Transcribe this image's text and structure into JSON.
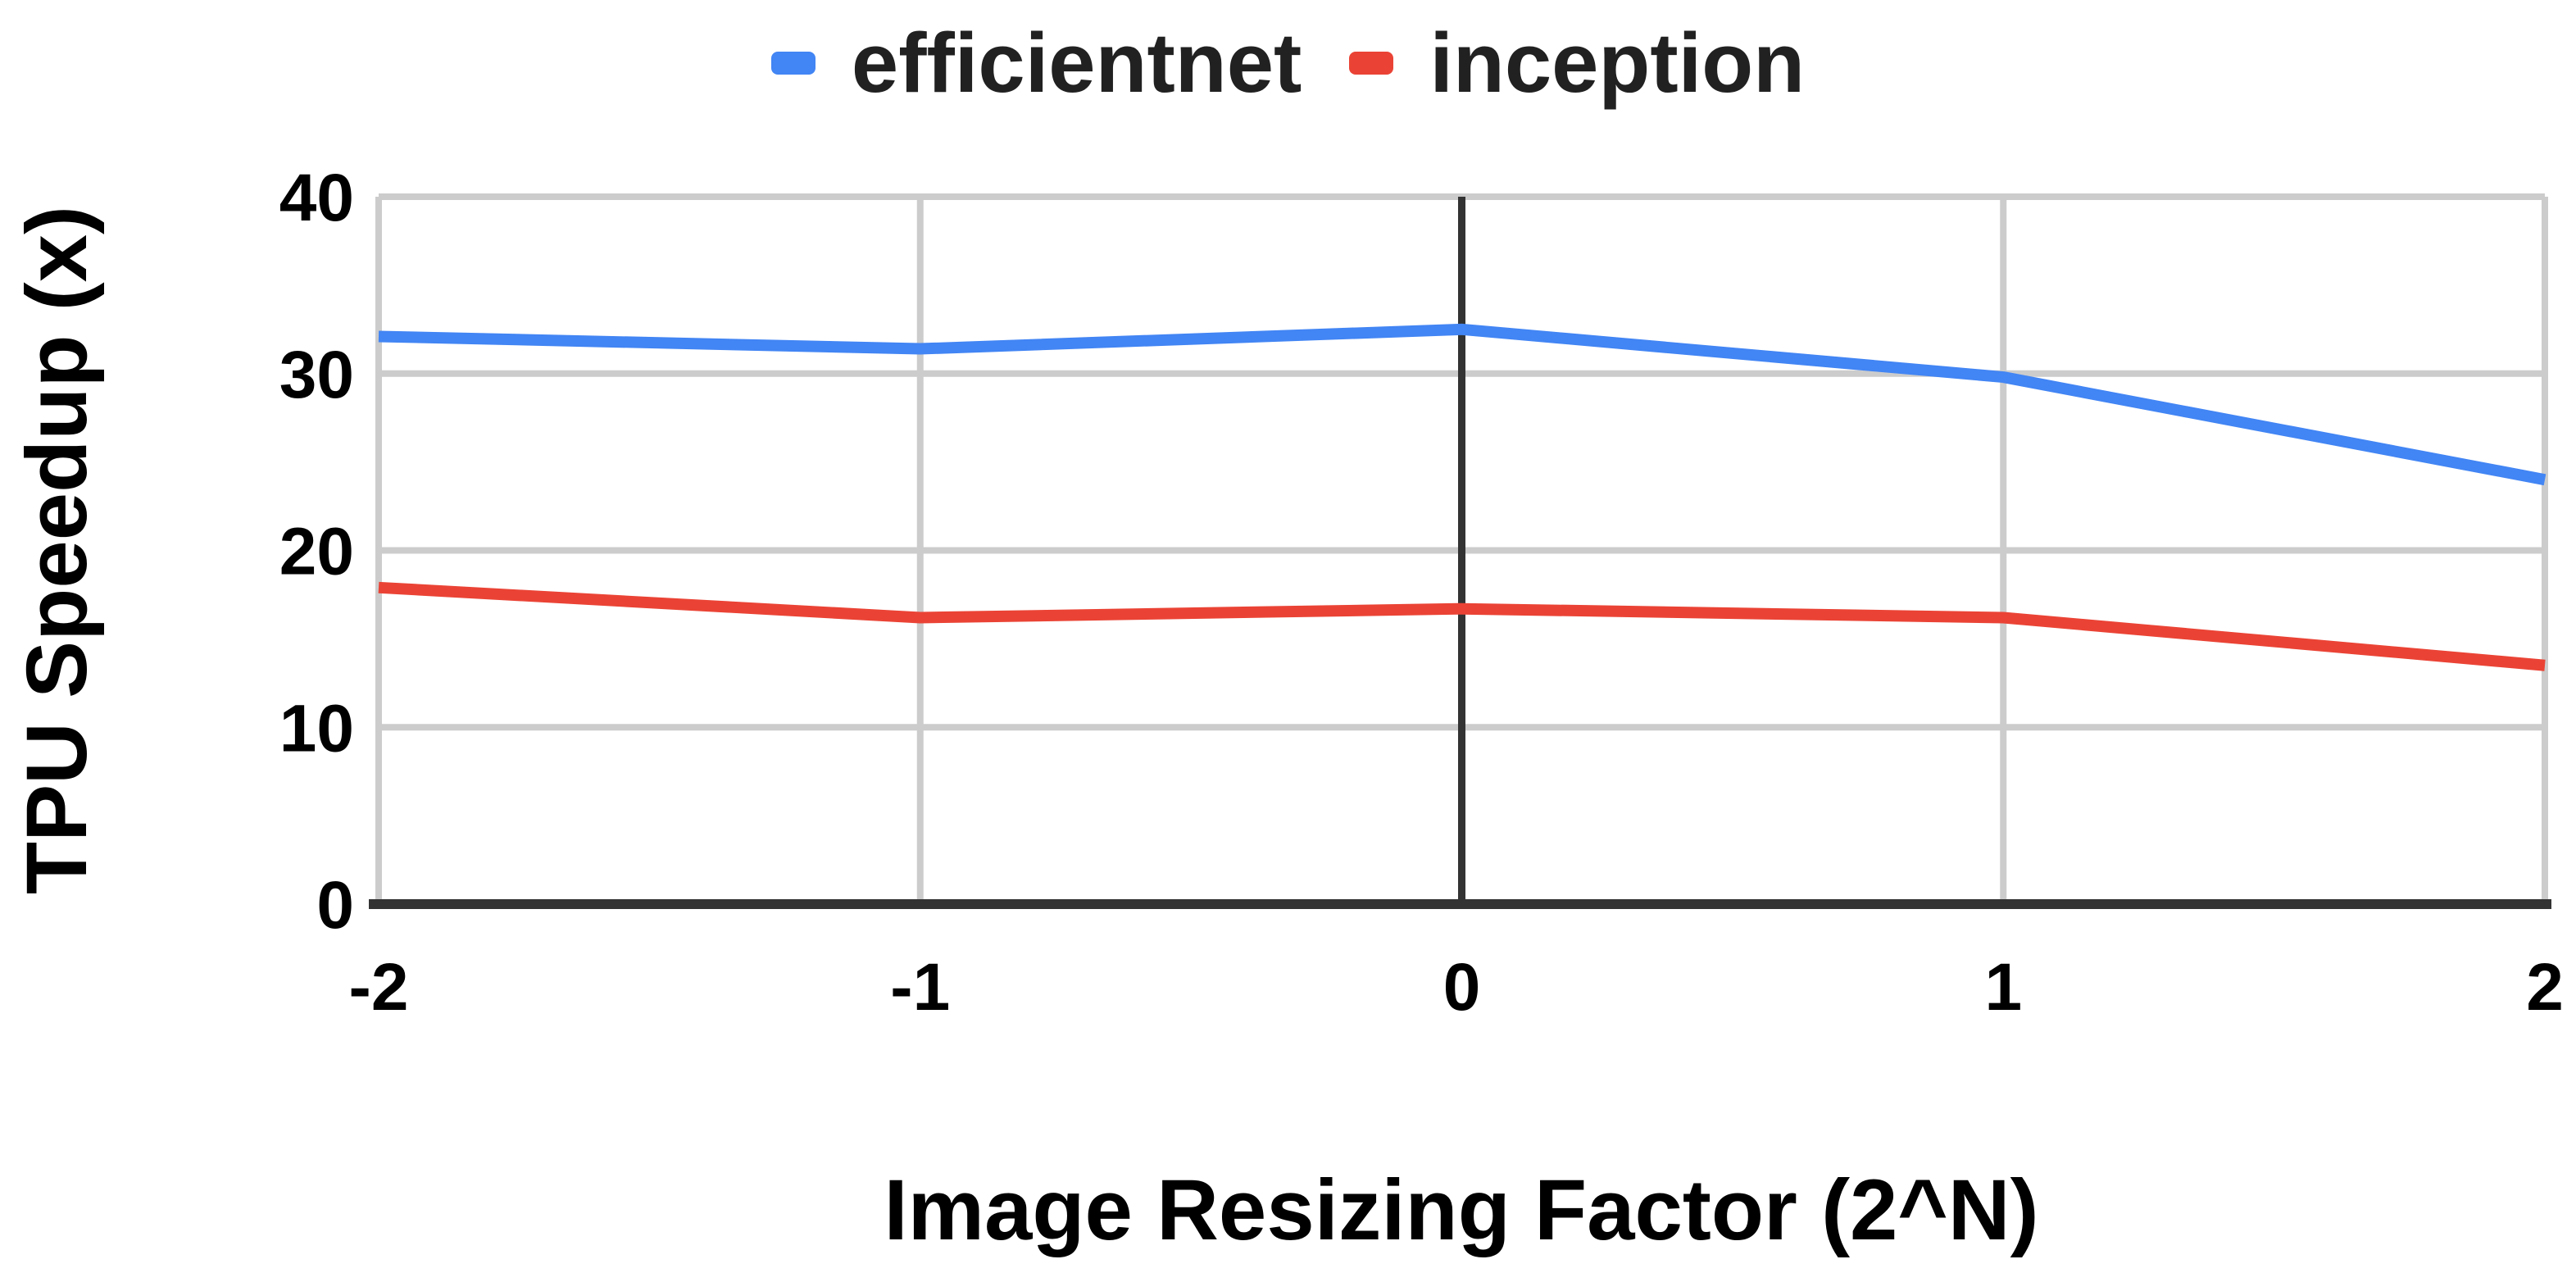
{
  "legend": {
    "items": [
      {
        "label": "efficientnet",
        "color": "#4285f4"
      },
      {
        "label": "inception",
        "color": "#ea4335"
      }
    ]
  },
  "chart_data": {
    "type": "line",
    "x": [
      -2,
      -1,
      0,
      1,
      2
    ],
    "x_tick_labels": [
      "-2",
      "-1",
      "0",
      "1",
      "2"
    ],
    "y_tick_labels": [
      "0",
      "10",
      "20",
      "30",
      "40"
    ],
    "series": [
      {
        "name": "efficientnet",
        "color": "#4285f4",
        "values": [
          32.1,
          31.4,
          32.5,
          29.8,
          24.0
        ]
      },
      {
        "name": "inception",
        "color": "#ea4335",
        "values": [
          17.9,
          16.2,
          16.7,
          16.2,
          13.5
        ]
      }
    ],
    "xlabel": "Image Resizing Factor (2^N)",
    "ylabel": "TPU Speedup (x)",
    "xlim": [
      -2,
      2
    ],
    "ylim": [
      0,
      40
    ],
    "grid": {
      "show": true,
      "color": "#cccccc",
      "zero_line_color": "#333333",
      "axis_line_color": "#333333"
    },
    "legend_position": "top",
    "background": "#ffffff",
    "text_color": "#000000"
  }
}
